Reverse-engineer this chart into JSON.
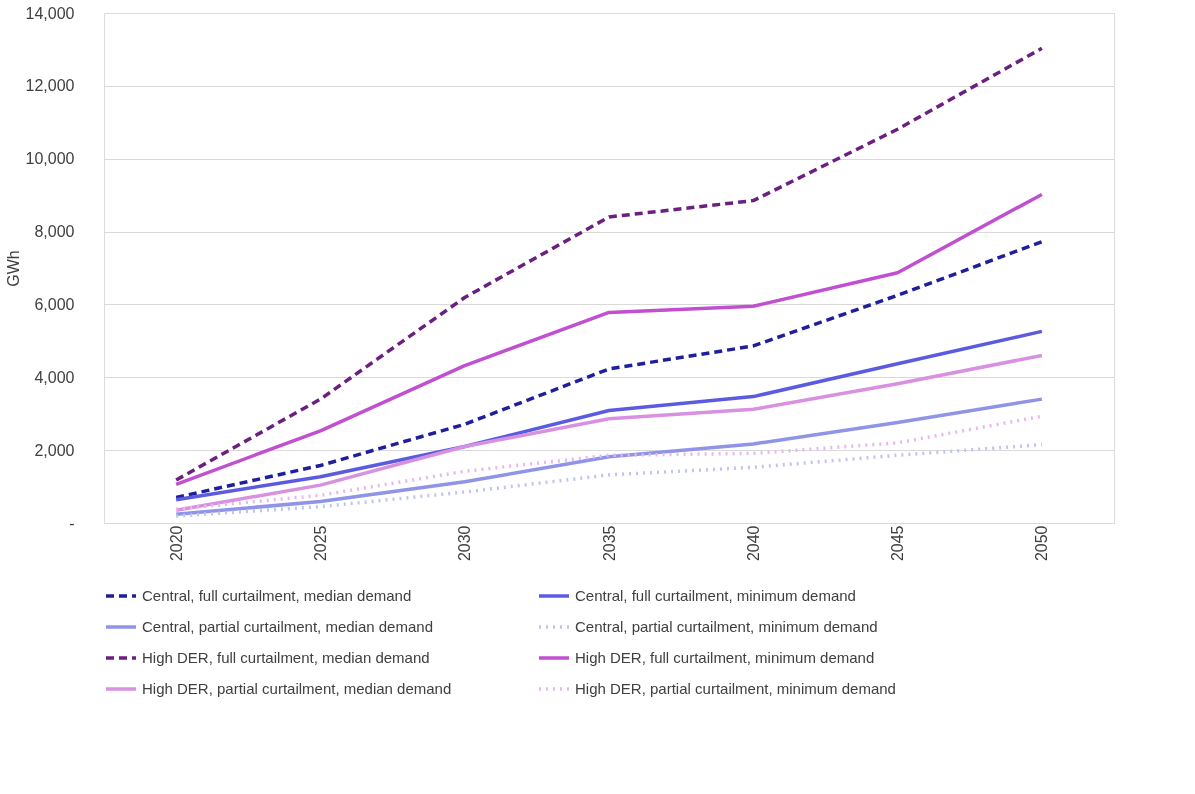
{
  "chart_data": {
    "type": "line",
    "ylabel": "GWh",
    "categories": [
      "2020",
      "2025",
      "2030",
      "2035",
      "2040",
      "2045",
      "2050"
    ],
    "ylim": [
      0,
      14000
    ],
    "yticks": [
      {
        "value": 0,
        "label": "-"
      },
      {
        "value": 2000,
        "label": "2,000"
      },
      {
        "value": 4000,
        "label": "4,000"
      },
      {
        "value": 6000,
        "label": "6,000"
      },
      {
        "value": 8000,
        "label": "8,000"
      },
      {
        "value": 10000,
        "label": "10,000"
      },
      {
        "value": 12000,
        "label": "12,000"
      },
      {
        "value": 14000,
        "label": "14,000"
      }
    ],
    "grid": "y",
    "legend": "bottom",
    "marker": "none",
    "series": [
      {
        "name": "Central, full curtailment, median demand",
        "color": "#1f1f9e",
        "line_style": "dashed",
        "values": [
          700,
          1580,
          2710,
          4230,
          4860,
          6250,
          7720
        ]
      },
      {
        "name": "Central, full curtailment, minimum demand",
        "color": "#5b5be0",
        "line_style": "solid",
        "values": [
          640,
          1270,
          2100,
          3090,
          3470,
          4370,
          5260
        ]
      },
      {
        "name": "Central, partial curtailment, median demand",
        "color": "#8f94e8",
        "line_style": "solid",
        "values": [
          240,
          590,
          1130,
          1820,
          2170,
          2760,
          3400
        ]
      },
      {
        "name": "Central, partial curtailment, minimum demand",
        "color": "#c0c4f0",
        "line_style": "dotted",
        "values": [
          190,
          450,
          850,
          1320,
          1530,
          1860,
          2150
        ]
      },
      {
        "name": "High DER, full curtailment, median demand",
        "color": "#6b2080",
        "line_style": "dashed",
        "values": [
          1180,
          3400,
          6190,
          8400,
          8850,
          10810,
          13030
        ]
      },
      {
        "name": "High DER, full curtailment, minimum demand",
        "color": "#c050d0",
        "line_style": "solid",
        "values": [
          1060,
          2530,
          4320,
          5780,
          5950,
          6870,
          9020
        ]
      },
      {
        "name": "High DER, partial curtailment, median demand",
        "color": "#d890e0",
        "line_style": "solid",
        "values": [
          350,
          1040,
          2100,
          2860,
          3120,
          3820,
          4600
        ]
      },
      {
        "name": "High DER, partial curtailment, minimum demand",
        "color": "#e8b8ec",
        "line_style": "dotted",
        "values": [
          380,
          760,
          1420,
          1860,
          1910,
          2200,
          2930
        ]
      }
    ]
  }
}
